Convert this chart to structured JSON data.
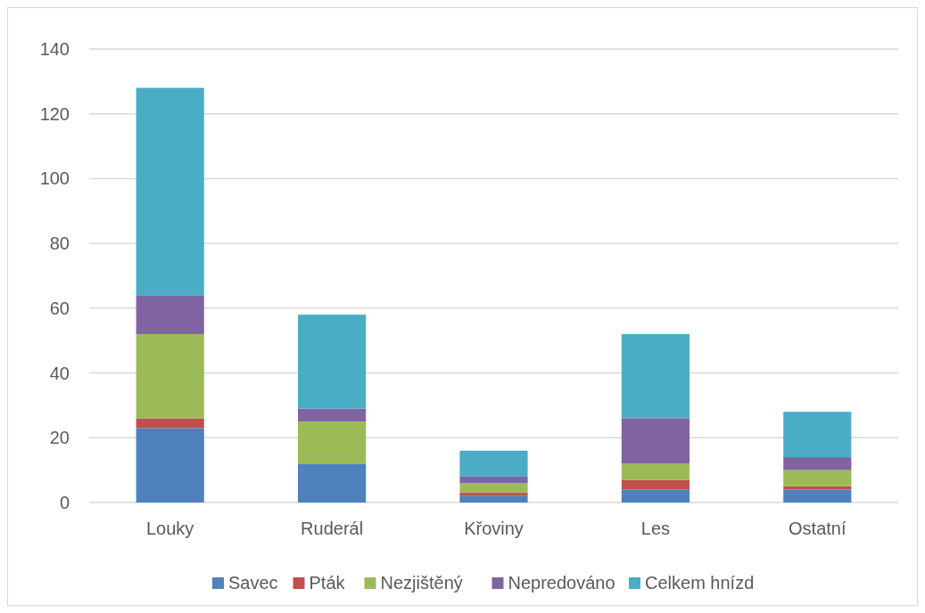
{
  "chart_data": {
    "type": "bar",
    "stacked": true,
    "categories": [
      "Louky",
      "Ruderál",
      "Křoviny",
      "Les",
      "Ostatní"
    ],
    "series": [
      {
        "name": "Savec",
        "color": "#4f81bd",
        "values": [
          23,
          12,
          2,
          4,
          4
        ]
      },
      {
        "name": "Pták",
        "color": "#c0504d",
        "values": [
          3,
          0,
          1,
          3,
          1
        ]
      },
      {
        "name": "Nezjištěný",
        "color": "#9bbb59",
        "values": [
          26,
          13,
          3,
          5,
          5
        ]
      },
      {
        "name": "Nepredováno",
        "color": "#8064a2",
        "values": [
          12,
          4,
          2,
          14,
          4
        ]
      },
      {
        "name": "Celkem hnízd",
        "color": "#4bacc6",
        "values": [
          64,
          29,
          8,
          26,
          14
        ]
      }
    ],
    "ylim": [
      0,
      140
    ],
    "yticks": [
      0,
      20,
      40,
      60,
      80,
      100,
      120,
      140
    ],
    "grid": "y",
    "legend": "bottom"
  }
}
